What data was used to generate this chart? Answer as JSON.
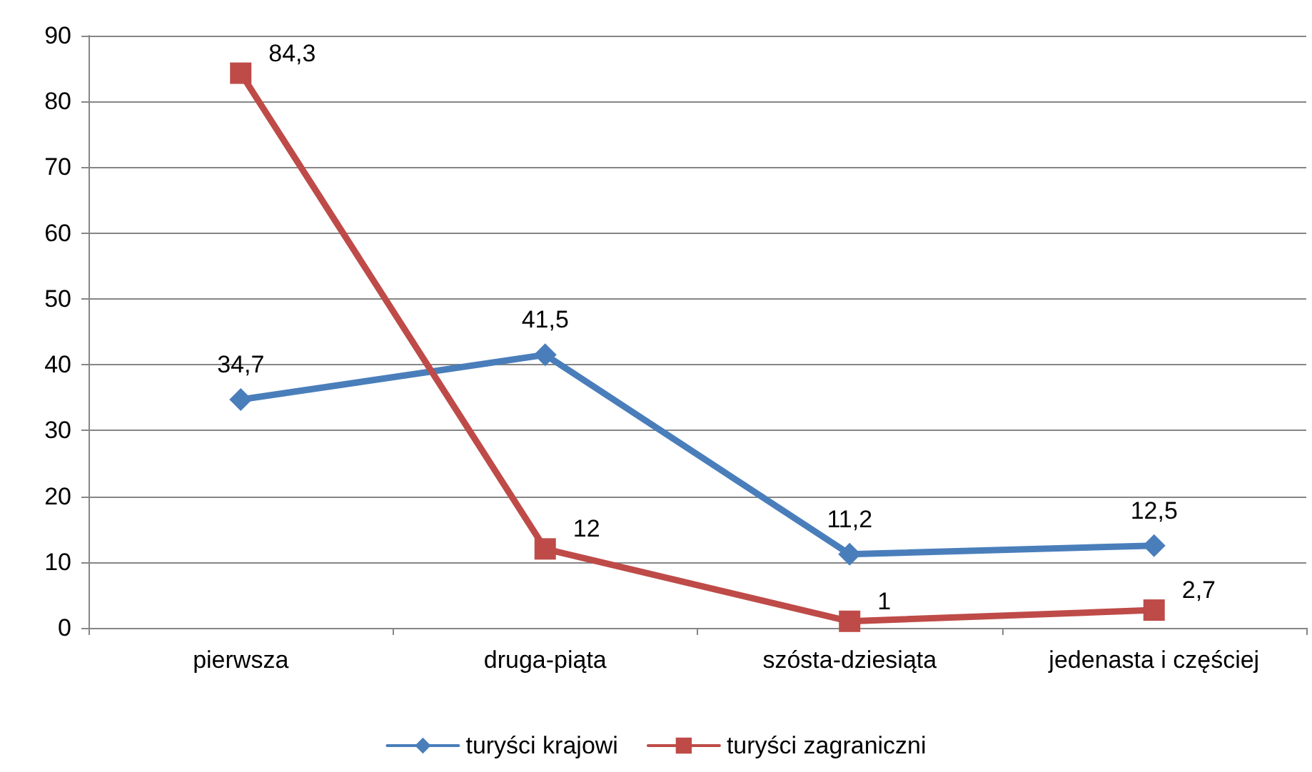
{
  "chart_data": {
    "type": "line",
    "categories": [
      "pierwsza",
      "druga-piąta",
      "szósta-dziesiąta",
      "jedenasta i częściej"
    ],
    "series": [
      {
        "name": "turyści krajowi",
        "color": "#4a7ebb",
        "marker": "diamond",
        "values": [
          34.7,
          41.5,
          11.2,
          12.5
        ],
        "value_labels": [
          "34,7",
          "41,5",
          "11,2",
          "12,5"
        ]
      },
      {
        "name": "turyści zagraniczni",
        "color": "#be4b48",
        "marker": "square",
        "values": [
          84.3,
          12,
          1,
          2.7
        ],
        "value_labels": [
          "84,3",
          "12",
          "1",
          "2,7"
        ]
      }
    ],
    "ylim": [
      0,
      90
    ],
    "yticks": [
      0,
      10,
      20,
      30,
      40,
      50,
      60,
      70,
      80,
      90
    ],
    "grid": "y",
    "legend": "bottom",
    "line_style": "solid"
  }
}
